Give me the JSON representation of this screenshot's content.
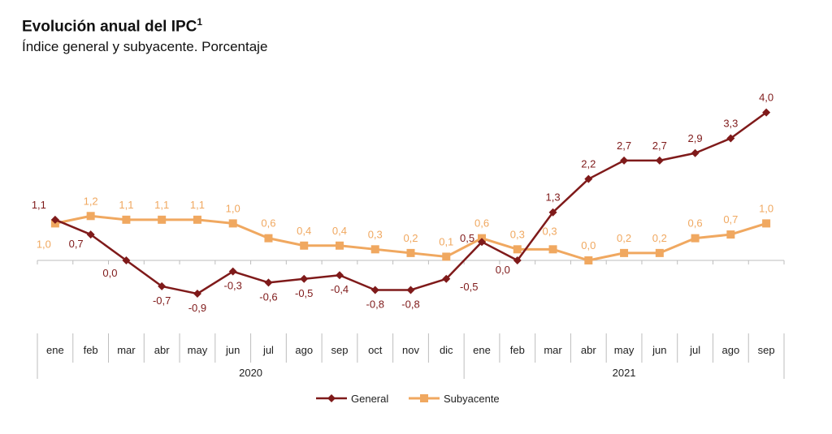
{
  "title": "Evolución anual del IPC",
  "title_sup": "1",
  "subtitle": "Índice general y subyacente. Porcentaje",
  "colors": {
    "general": "#7f1a1a",
    "subyacente": "#f0a860"
  },
  "chart_data": {
    "type": "line",
    "title": "Evolución anual del IPC",
    "subtitle": "Índice general y subyacente. Porcentaje",
    "categories": [
      "ene",
      "feb",
      "mar",
      "abr",
      "may",
      "jun",
      "jul",
      "ago",
      "sep",
      "oct",
      "nov",
      "dic",
      "ene",
      "feb",
      "mar",
      "abr",
      "may",
      "jun",
      "jul",
      "ago",
      "sep"
    ],
    "year_groups": [
      {
        "label": "2020",
        "start": 0,
        "end": 11
      },
      {
        "label": "2021",
        "start": 12,
        "end": 20
      }
    ],
    "series": [
      {
        "name": "General",
        "marker": "diamond",
        "values": [
          1.1,
          0.7,
          0.0,
          -0.7,
          -0.9,
          -0.3,
          -0.6,
          -0.5,
          -0.4,
          -0.8,
          -0.8,
          -0.5,
          0.5,
          0.0,
          1.3,
          2.2,
          2.7,
          2.7,
          2.9,
          3.3,
          4.0
        ],
        "labels": [
          "1,1",
          "0,7",
          "0,0",
          "-0,7",
          "-0,9",
          "-0,3",
          "-0,6",
          "-0,5",
          "-0,4",
          "-0,8",
          "-0,8",
          "-0,5",
          "0,5",
          "0,0",
          "1,3",
          "2,2",
          "2,7",
          "2,7",
          "2,9",
          "3,3",
          "4,0"
        ]
      },
      {
        "name": "Subyacente",
        "marker": "square",
        "values": [
          1.0,
          1.2,
          1.1,
          1.1,
          1.1,
          1.0,
          0.6,
          0.4,
          0.4,
          0.3,
          0.2,
          0.1,
          0.6,
          0.3,
          0.3,
          0.0,
          0.2,
          0.2,
          0.6,
          0.7,
          1.0
        ],
        "labels": [
          "1,0",
          "1,2",
          "1,1",
          "1,1",
          "1,1",
          "1,0",
          "0,6",
          "0,4",
          "0,4",
          "0,3",
          "0,2",
          "0,1",
          "0,6",
          "0,3",
          "0,3",
          "0,0",
          "0,2",
          "0,2",
          "0,6",
          "0,7",
          "1,0"
        ]
      }
    ],
    "legend_position": "bottom",
    "grid": false
  }
}
